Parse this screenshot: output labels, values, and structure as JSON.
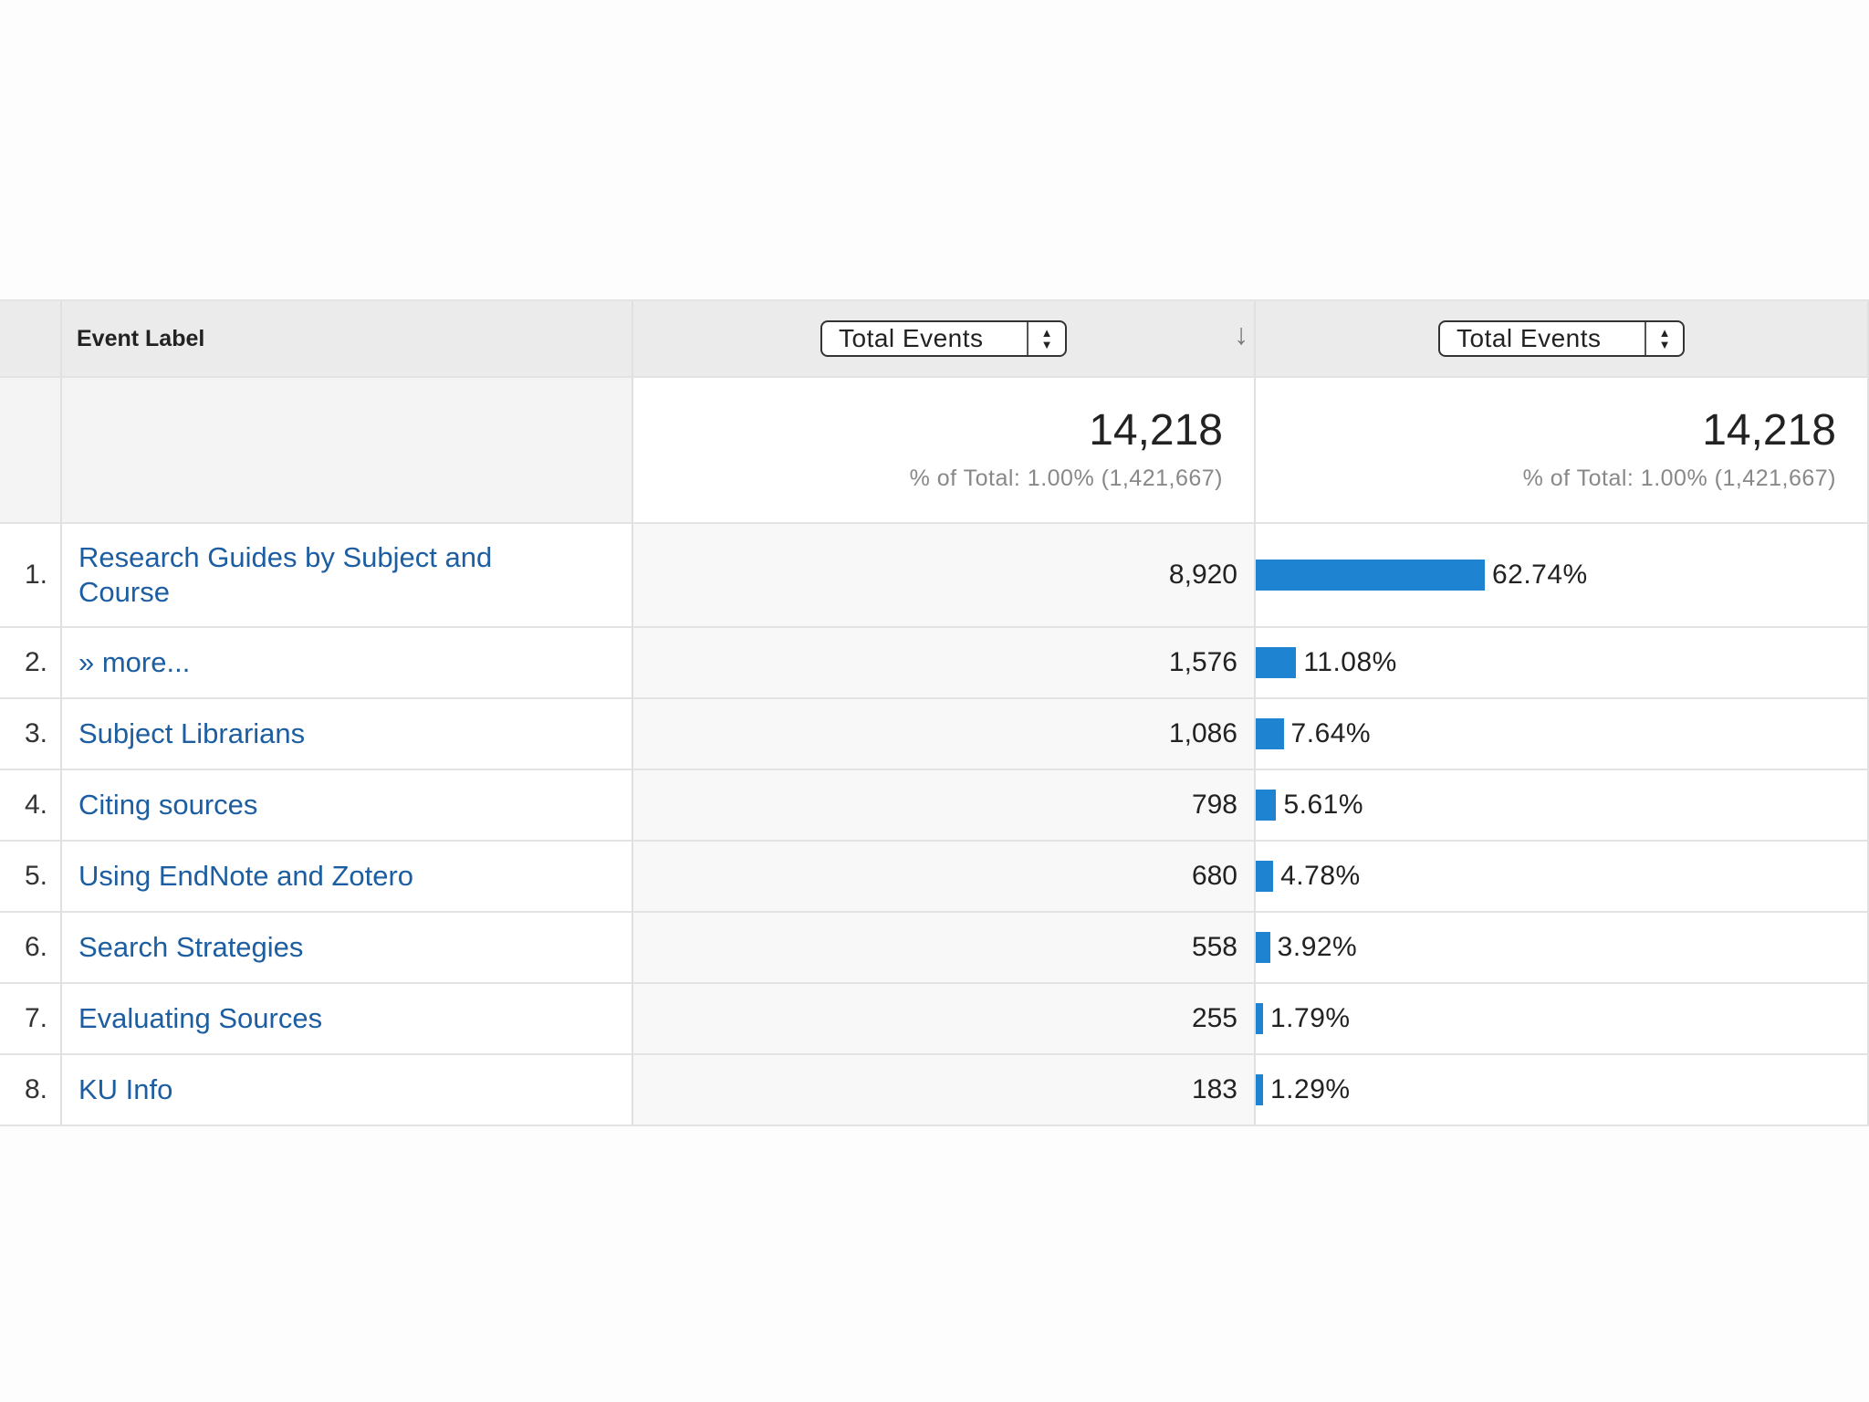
{
  "table": {
    "dimension_header": "Event Label",
    "metric1_select": "Total Events",
    "metric2_select": "Total Events",
    "sort_icon": "arrow-down-icon",
    "summary": {
      "total1": "14,218",
      "pct1": "% of Total: 1.00% (1,421,667)",
      "total2": "14,218",
      "pct2": "% of Total: 1.00% (1,421,667)"
    },
    "rows": [
      {
        "index": "1.",
        "label": "Research Guides by Subject and Course",
        "value": "8,920",
        "percent": "62.74%",
        "share": 62.74
      },
      {
        "index": "2.",
        "label": "» more...",
        "value": "1,576",
        "percent": "11.08%",
        "share": 11.08
      },
      {
        "index": "3.",
        "label": "Subject Librarians",
        "value": "1,086",
        "percent": "7.64%",
        "share": 7.64
      },
      {
        "index": "4.",
        "label": "Citing sources",
        "value": "798",
        "percent": "5.61%",
        "share": 5.61
      },
      {
        "index": "5.",
        "label": "Using EndNote and Zotero",
        "value": "680",
        "percent": "4.78%",
        "share": 4.78
      },
      {
        "index": "6.",
        "label": "Search Strategies",
        "value": "558",
        "percent": "3.92%",
        "share": 3.92
      },
      {
        "index": "7.",
        "label": "Evaluating Sources",
        "value": "255",
        "percent": "1.79%",
        "share": 1.79
      },
      {
        "index": "8.",
        "label": "KU Info",
        "value": "183",
        "percent": "1.29%",
        "share": 1.29
      }
    ],
    "bar_color": "#1e84d2",
    "link_color": "#1c5ea1"
  }
}
